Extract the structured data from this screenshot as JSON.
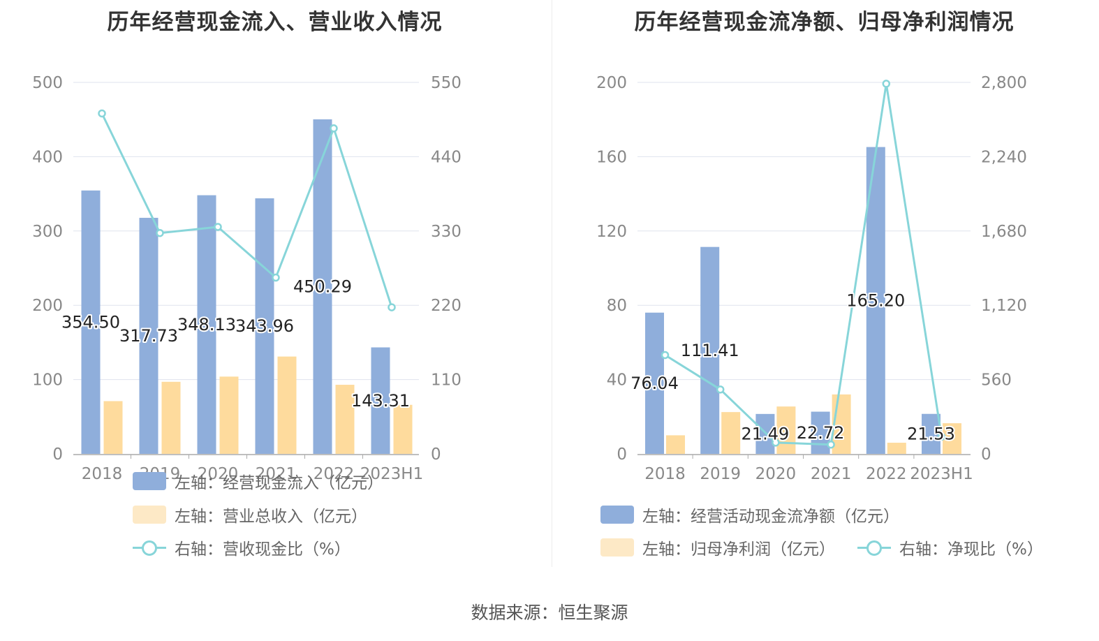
{
  "chart_data": [
    {
      "type": "bar",
      "title": "历年经营现金流入、营业收入情况",
      "categories": [
        "2018",
        "2019",
        "2020",
        "2021",
        "2022",
        "2023H1"
      ],
      "y_left": {
        "min": 0,
        "max": 500,
        "ticks": [
          "0",
          "100",
          "200",
          "300",
          "400",
          "500"
        ]
      },
      "y_right": {
        "min": 0,
        "max": 550,
        "ticks": [
          "0",
          "110",
          "220",
          "330",
          "440",
          "550"
        ]
      },
      "series": [
        {
          "name": "左轴：经营现金流入（亿元）",
          "kind": "bar",
          "axis": "left",
          "color": "#8faedb",
          "values": [
            354.5,
            317.73,
            348.13,
            343.96,
            450.29,
            143.31
          ],
          "labels": [
            "354.50",
            "317.73",
            "348.13",
            "343.96",
            "450.29",
            "143.31"
          ]
        },
        {
          "name": "左轴：营业总收入（亿元）",
          "kind": "bar",
          "axis": "left",
          "color": "#fedb9d",
          "values": [
            71,
            97,
            104,
            131,
            93,
            66
          ]
        },
        {
          "name": "右轴：营收现金比（%）",
          "kind": "line",
          "axis": "right",
          "color": "#87d5d9",
          "values": [
            504,
            327,
            336,
            261,
            482,
            217
          ]
        }
      ]
    },
    {
      "type": "bar",
      "title": "历年经营现金流净额、归母净利润情况",
      "categories": [
        "2018",
        "2019",
        "2020",
        "2021",
        "2022",
        "2023H1"
      ],
      "y_left": {
        "min": 0,
        "max": 200,
        "ticks": [
          "0",
          "40",
          "80",
          "120",
          "160",
          "200"
        ]
      },
      "y_right": {
        "min": 0,
        "max": 2800,
        "ticks": [
          "0",
          "560",
          "1,120",
          "1,680",
          "2,240",
          "2,800"
        ]
      },
      "series": [
        {
          "name": "左轴：经营活动现金流净额（亿元）",
          "kind": "bar",
          "axis": "left",
          "color": "#8faedb",
          "values": [
            76.04,
            111.41,
            21.49,
            22.72,
            165.2,
            21.53
          ],
          "labels": [
            "76.04",
            "111.41",
            "21.49",
            "22.72",
            "165.20",
            "21.53"
          ]
        },
        {
          "name": "左轴：归母净利润（亿元）",
          "kind": "bar",
          "axis": "left",
          "color": "#fedb9d",
          "values": [
            10,
            22.5,
            25.5,
            32,
            6,
            16.5
          ]
        },
        {
          "name": "右轴：净现比（%）",
          "kind": "line",
          "axis": "right",
          "color": "#87d5d9",
          "values": [
            745,
            485,
            85,
            70,
            2790,
            130
          ]
        }
      ]
    }
  ],
  "footer": {
    "source": "数据来源：恒生聚源"
  }
}
